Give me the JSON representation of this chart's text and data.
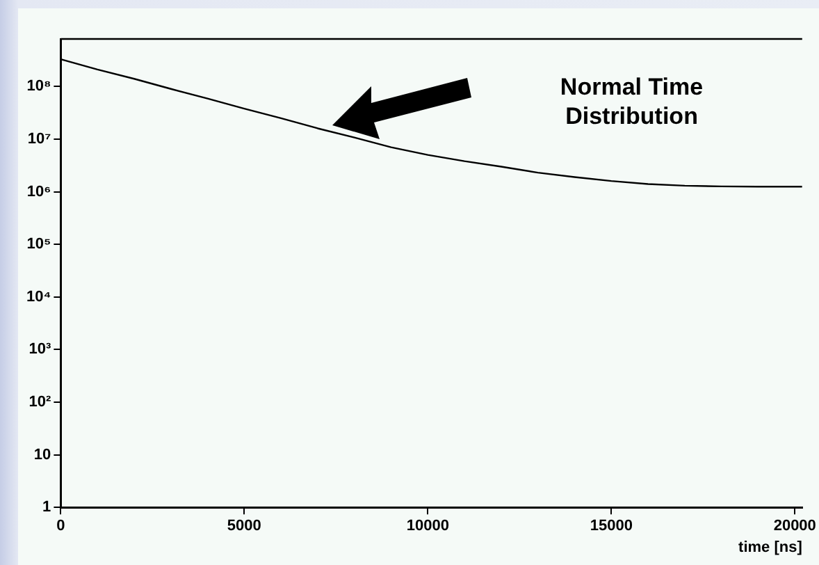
{
  "chart_data": {
    "type": "line",
    "log": "y",
    "grid": false,
    "marker": "none",
    "line_style": "solid",
    "color": "#000000",
    "xlabel": "time [ns]",
    "x": [
      0,
      1000,
      2000,
      3000,
      4000,
      5000,
      6000,
      7000,
      8000,
      9000,
      10000,
      11000,
      12000,
      13000,
      14000,
      15000,
      16000,
      17000,
      18000,
      19000,
      20000,
      20200
    ],
    "values": [
      330000000,
      210000000,
      140000000,
      90000000,
      59000000,
      38000000,
      25000000,
      16000000,
      10700000,
      7000000,
      5000000,
      3800000,
      3000000,
      2300000,
      1900000,
      1600000,
      1400000,
      1300000,
      1260000,
      1250000,
      1250000,
      1250000
    ],
    "xlim": [
      0,
      20200
    ],
    "xticks": [
      0,
      5000,
      10000,
      15000,
      20000
    ],
    "ylim": [
      1,
      800000000
    ],
    "yticks": [
      1,
      10,
      {
        "value": 100,
        "label": "10²"
      },
      {
        "value": 1000,
        "label": "10³"
      },
      {
        "value": 10000,
        "label": "10⁴"
      },
      {
        "value": 100000,
        "label": "10⁵"
      },
      {
        "value": 1000000,
        "label": "10⁶"
      },
      {
        "value": 10000000,
        "label": "10⁷"
      },
      {
        "value": 100000000,
        "label": "10⁸"
      }
    ],
    "annotations": [
      "Normal Time Distribution"
    ]
  }
}
